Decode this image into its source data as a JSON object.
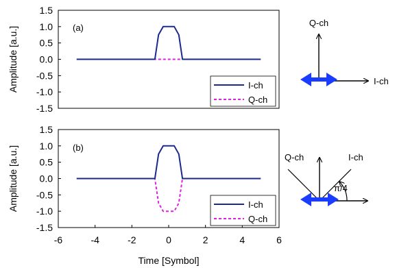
{
  "chart_data": [
    {
      "type": "line",
      "panel_label": "(a)",
      "ylabel": "Amplitude [a.u.]",
      "xlim": [
        -6,
        6
      ],
      "ylim": [
        -1.5,
        1.5
      ],
      "yticks": [
        "1.5",
        "1.0",
        "0.5",
        "0.0",
        "-0.5",
        "-1.0",
        "-1.5"
      ],
      "legend_position": "bottom-right",
      "series": [
        {
          "name": "I-ch",
          "color": "#1a2a8c",
          "dash": "solid",
          "x": [
            -5,
            -0.75,
            -0.55,
            -0.3,
            0.3,
            0.55,
            0.75,
            5
          ],
          "y": [
            0,
            0,
            0.75,
            1.0,
            1.0,
            0.75,
            0,
            0
          ]
        },
        {
          "name": "Q-ch",
          "color": "#e020e0",
          "dash": "dashed",
          "x": [
            -5,
            5
          ],
          "y": [
            0,
            0
          ]
        }
      ]
    },
    {
      "type": "line",
      "panel_label": "(b)",
      "ylabel": "Amplitude [a.u.]",
      "xlabel": "Time [Symbol]",
      "xlim": [
        -6,
        6
      ],
      "ylim": [
        -1.5,
        1.5
      ],
      "xticks": [
        "-6",
        "-4",
        "-2",
        "0",
        "2",
        "4",
        "6"
      ],
      "yticks": [
        "1.5",
        "1.0",
        "0.5",
        "0.0",
        "-0.5",
        "-1.0",
        "-1.5"
      ],
      "legend_position": "bottom-right",
      "series": [
        {
          "name": "I-ch",
          "color": "#1a2a8c",
          "dash": "solid",
          "x": [
            -5,
            -0.75,
            -0.55,
            -0.3,
            0.3,
            0.55,
            0.75,
            5
          ],
          "y": [
            0,
            0,
            0.75,
            1.0,
            1.0,
            0.75,
            0,
            0
          ]
        },
        {
          "name": "Q-ch",
          "color": "#e020e0",
          "dash": "dashed",
          "x": [
            -5,
            -0.75,
            -0.55,
            -0.3,
            0.3,
            0.55,
            0.75,
            5
          ],
          "y": [
            0,
            0,
            -0.75,
            -1.0,
            -1.0,
            -0.75,
            0,
            0
          ]
        }
      ]
    }
  ],
  "diagrams": {
    "a": {
      "up_label": "Q-ch",
      "right_label": "I-ch"
    },
    "b": {
      "q_label": "Q-ch",
      "i_label": "I-ch",
      "angle_label": "π/4"
    }
  },
  "colors": {
    "arrow_blue": "#1a3cff",
    "axis": "#000000"
  }
}
